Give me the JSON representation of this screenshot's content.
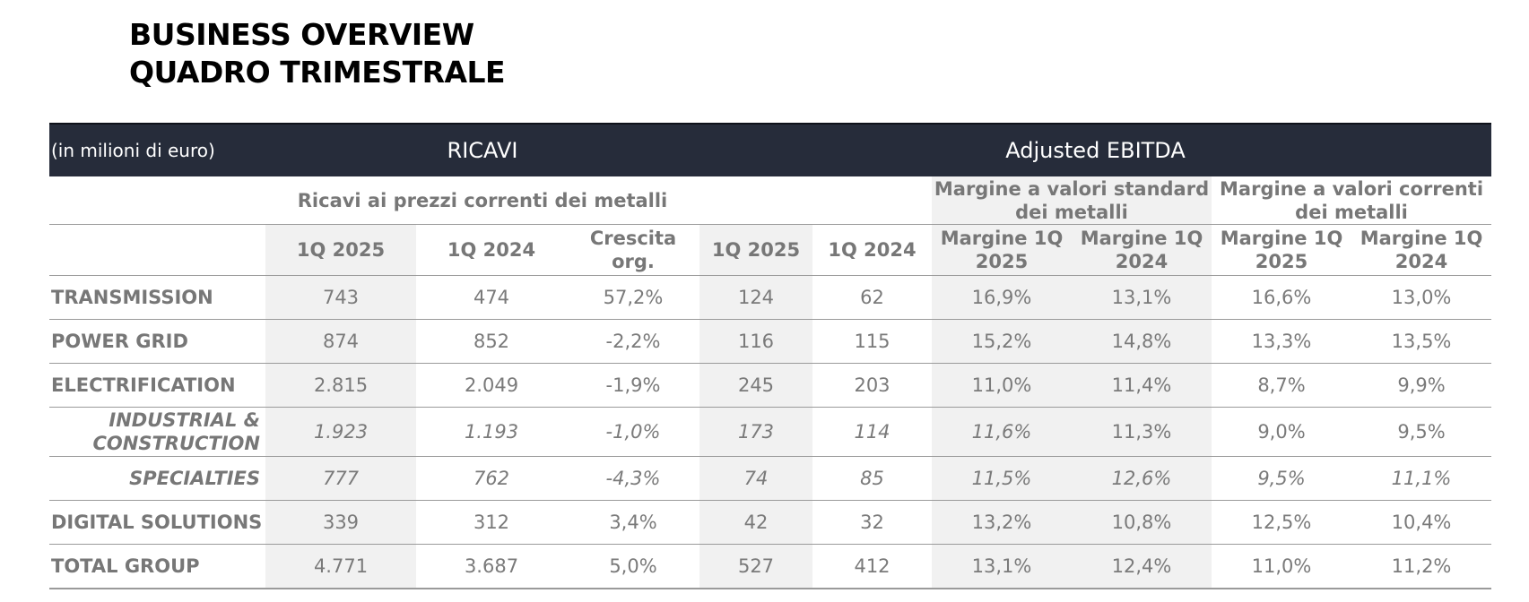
{
  "title": {
    "line1": "BUSINESS OVERVIEW",
    "line2": "QUADRO TRIMESTRALE"
  },
  "header": {
    "unit": "(in milioni di euro)",
    "group_ricavi": "RICAVI",
    "group_ebitda": "Adjusted EBITDA"
  },
  "subheader": {
    "ricavi_desc": "Ricavi ai prezzi correnti dei metalli",
    "margin_standard": "Margine a valori standard dei metalli",
    "margin_correnti": "Margine a valori correnti dei metalli"
  },
  "columns": {
    "ricavi_1q2025": "1Q 2025",
    "ricavi_1q2024": "1Q 2024",
    "crescita": "Crescita org.",
    "ebitda_1q2025": "1Q 2025",
    "ebitda_1q2024": "1Q 2024",
    "std_margin_2025": "Margine 1Q 2025",
    "std_margin_2024": "Margine 1Q 2024",
    "cur_margin_2025": "Margine 1Q 2025",
    "cur_margin_2024": "Margine 1Q 2024"
  },
  "rows": [
    {
      "label": "TRANSMISSION",
      "v": [
        "743",
        "474",
        "57,2%",
        "124",
        "62",
        "16,9%",
        "13,1%",
        "16,6%",
        "13,0%"
      ]
    },
    {
      "label": "POWER GRID",
      "v": [
        "874",
        "852",
        "-2,2%",
        "116",
        "115",
        "15,2%",
        "14,8%",
        "13,3%",
        "13,5%"
      ]
    },
    {
      "label": "ELECTRIFICATION",
      "v": [
        "2.815",
        "2.049",
        "-1,9%",
        "245",
        "203",
        "11,0%",
        "11,4%",
        "8,7%",
        "9,9%"
      ]
    },
    {
      "label": "INDUSTRIAL & CONSTRUCTION",
      "v": [
        "1.923",
        "1.193",
        "-1,0%",
        "173",
        "114",
        "11,6%",
        "11,3%",
        "9,0%",
        "9,5%"
      ]
    },
    {
      "label": "SPECIALTIES",
      "v": [
        "777",
        "762",
        "-4,3%",
        "74",
        "85",
        "11,5%",
        "12,6%",
        "9,5%",
        "11,1%"
      ]
    },
    {
      "label": "DIGITAL SOLUTIONS",
      "v": [
        "339",
        "312",
        "3,4%",
        "42",
        "32",
        "13,2%",
        "10,8%",
        "12,5%",
        "10,4%"
      ]
    },
    {
      "label": "TOTAL GROUP",
      "v": [
        "4.771",
        "3.687",
        "5,0%",
        "527",
        "412",
        "13,1%",
        "12,4%",
        "11,0%",
        "11,2%"
      ]
    }
  ]
}
